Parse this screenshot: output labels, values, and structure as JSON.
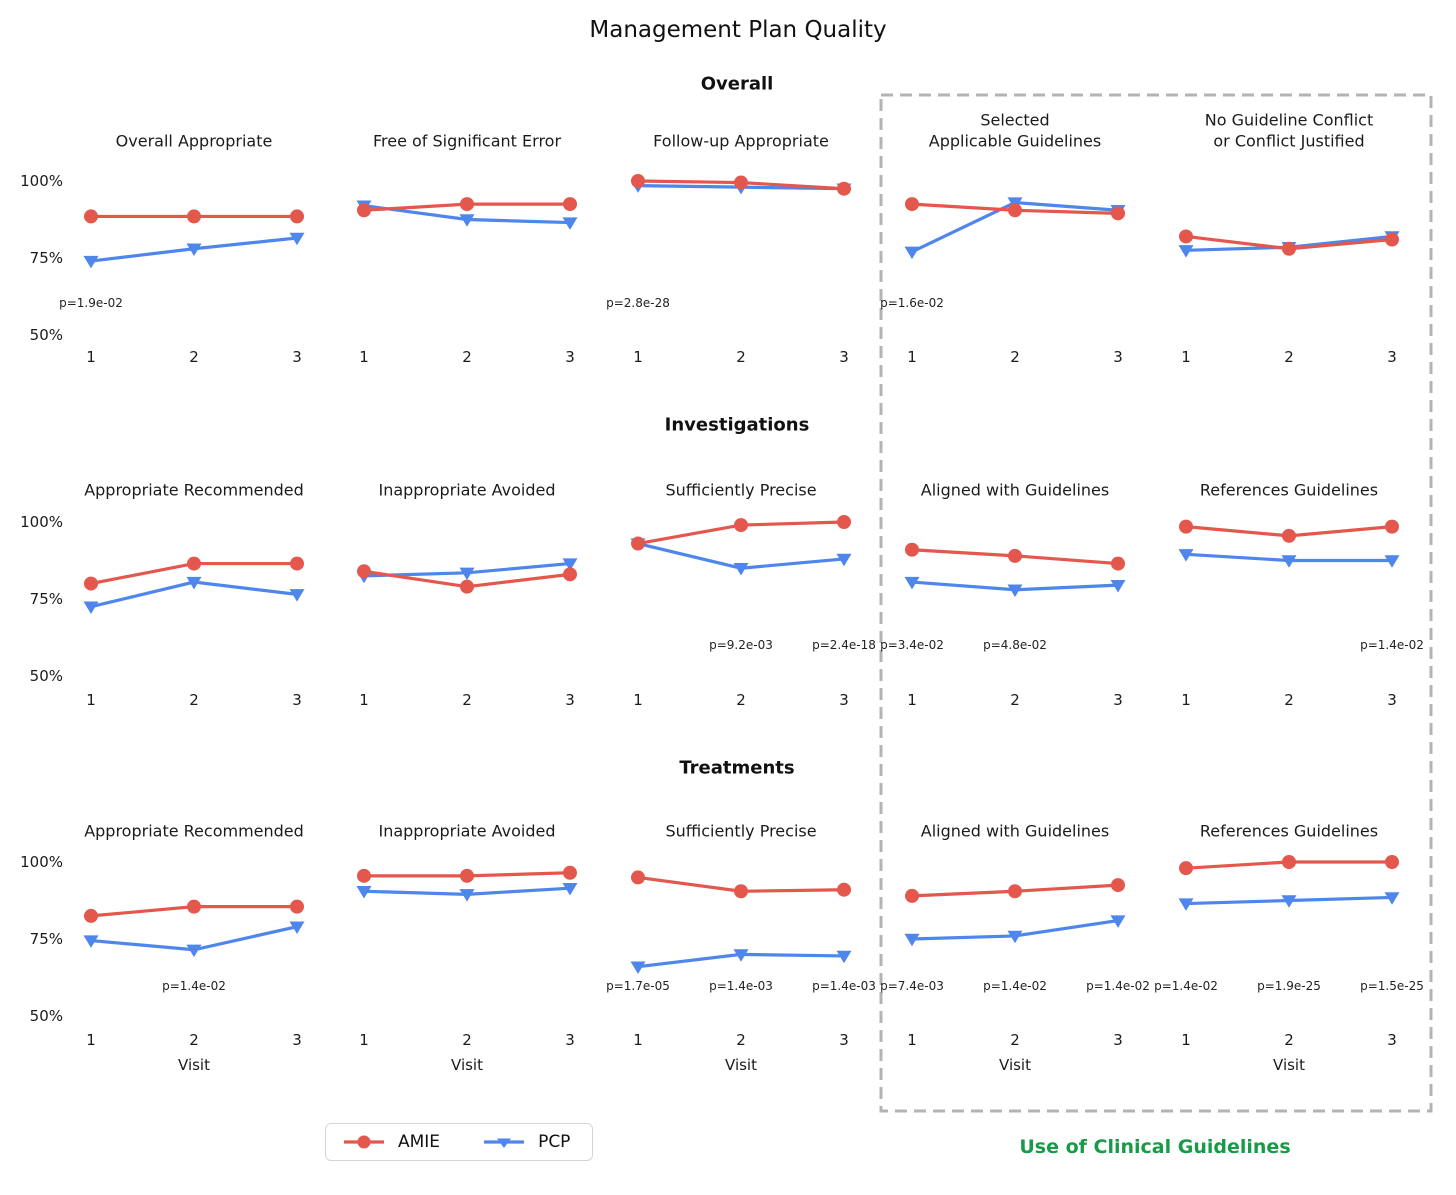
{
  "chart_data": {
    "type": "line",
    "title": "Management Plan Quality",
    "xlabel": "Visit",
    "x": [
      1,
      2,
      3
    ],
    "x_tick_labels": [
      "1",
      "2",
      "3"
    ],
    "y_ticks": [
      {
        "value": 100,
        "label": "100%"
      },
      {
        "value": 75,
        "label": "75%"
      },
      {
        "value": 50,
        "label": "50%"
      }
    ],
    "ylim": [
      50,
      100
    ],
    "grid": false,
    "legend_position": "bottom-left",
    "legend": [
      {
        "name": "AMIE",
        "marker": "circle",
        "color": "#e4574c"
      },
      {
        "name": "PCP",
        "marker": "triangle-down",
        "color": "#4e86ec"
      }
    ],
    "guidelines_box_label": "Use of Clinical Guidelines",
    "colors": {
      "amie": "#e4574c",
      "pcp": "#4e86ec",
      "guidelines_green": "#189b48",
      "dashed_box": "#b3b3b3"
    },
    "sections": [
      {
        "label": "Overall",
        "subplots": [
          {
            "title": "Overall Appropriate",
            "series": [
              {
                "name": "AMIE",
                "values": [
                  88.5,
                  88.5,
                  88.5
                ]
              },
              {
                "name": "PCP",
                "values": [
                  74,
                  78,
                  81.5
                ]
              }
            ],
            "pvalues": [
              {
                "visit": 1,
                "label": "p=1.9e-02"
              }
            ]
          },
          {
            "title": "Free of Significant Error",
            "series": [
              {
                "name": "AMIE",
                "values": [
                  90.5,
                  92.5,
                  92.5
                ]
              },
              {
                "name": "PCP",
                "values": [
                  92,
                  87.5,
                  86.5
                ]
              }
            ],
            "pvalues": []
          },
          {
            "title": "Follow-up Appropriate",
            "series": [
              {
                "name": "AMIE",
                "values": [
                  100,
                  99.5,
                  97.5
                ]
              },
              {
                "name": "PCP",
                "values": [
                  98.5,
                  98,
                  97.5
                ]
              }
            ],
            "pvalues": [
              {
                "visit": 1,
                "label": "p=2.8e-28"
              }
            ]
          },
          {
            "title": "Selected\nApplicable Guidelines",
            "in_guidelines_box": true,
            "series": [
              {
                "name": "AMIE",
                "values": [
                  92.5,
                  90.5,
                  89.5
                ]
              },
              {
                "name": "PCP",
                "values": [
                  77,
                  93,
                  90.5
                ]
              }
            ],
            "pvalues": [
              {
                "visit": 1,
                "label": "p=1.6e-02"
              }
            ]
          },
          {
            "title": "No Guideline Conflict\nor Conflict Justified",
            "in_guidelines_box": true,
            "series": [
              {
                "name": "AMIE",
                "values": [
                  82,
                  78,
                  81
                ]
              },
              {
                "name": "PCP",
                "values": [
                  77.5,
                  78.5,
                  82
                ]
              }
            ],
            "pvalues": []
          }
        ]
      },
      {
        "label": "Investigations",
        "subplots": [
          {
            "title": "Appropriate Recommended",
            "series": [
              {
                "name": "AMIE",
                "values": [
                  80,
                  86.5,
                  86.5
                ]
              },
              {
                "name": "PCP",
                "values": [
                  72.5,
                  80.5,
                  76.5
                ]
              }
            ],
            "pvalues": []
          },
          {
            "title": "Inappropriate Avoided",
            "series": [
              {
                "name": "AMIE",
                "values": [
                  84,
                  79,
                  83
                ]
              },
              {
                "name": "PCP",
                "values": [
                  82.5,
                  83.5,
                  86.5
                ]
              }
            ],
            "pvalues": []
          },
          {
            "title": "Sufficiently Precise",
            "series": [
              {
                "name": "AMIE",
                "values": [
                  93,
                  99,
                  100
                ]
              },
              {
                "name": "PCP",
                "values": [
                  93,
                  85,
                  88
                ]
              }
            ],
            "pvalues": [
              {
                "visit": 2,
                "label": "p=9.2e-03"
              },
              {
                "visit": 3,
                "label": "p=2.4e-18"
              }
            ]
          },
          {
            "title": "Aligned with Guidelines",
            "in_guidelines_box": true,
            "series": [
              {
                "name": "AMIE",
                "values": [
                  91,
                  89,
                  86.5
                ]
              },
              {
                "name": "PCP",
                "values": [
                  80.5,
                  78,
                  79.5
                ]
              }
            ],
            "pvalues": [
              {
                "visit": 1,
                "label": "p=3.4e-02"
              },
              {
                "visit": 2,
                "label": "p=4.8e-02"
              }
            ]
          },
          {
            "title": "References Guidelines",
            "in_guidelines_box": true,
            "series": [
              {
                "name": "AMIE",
                "values": [
                  98.5,
                  95.5,
                  98.5
                ]
              },
              {
                "name": "PCP",
                "values": [
                  89.5,
                  87.5,
                  87.5
                ]
              }
            ],
            "pvalues": [
              {
                "visit": 3,
                "label": "p=1.4e-02"
              }
            ]
          }
        ]
      },
      {
        "label": "Treatments",
        "subplots": [
          {
            "title": "Appropriate Recommended",
            "series": [
              {
                "name": "AMIE",
                "values": [
                  82.5,
                  85.5,
                  85.5
                ]
              },
              {
                "name": "PCP",
                "values": [
                  74.5,
                  71.5,
                  79
                ]
              }
            ],
            "pvalues": [
              {
                "visit": 2,
                "label": "p=1.4e-02"
              }
            ]
          },
          {
            "title": "Inappropriate Avoided",
            "series": [
              {
                "name": "AMIE",
                "values": [
                  95.5,
                  95.5,
                  96.5
                ]
              },
              {
                "name": "PCP",
                "values": [
                  90.5,
                  89.5,
                  91.5
                ]
              }
            ],
            "pvalues": []
          },
          {
            "title": "Sufficiently Precise",
            "series": [
              {
                "name": "AMIE",
                "values": [
                  95,
                  90.5,
                  91
                ]
              },
              {
                "name": "PCP",
                "values": [
                  66,
                  70,
                  69.5
                ]
              }
            ],
            "pvalues": [
              {
                "visit": 1,
                "label": "p=1.7e-05"
              },
              {
                "visit": 2,
                "label": "p=1.4e-03"
              },
              {
                "visit": 3,
                "label": "p=1.4e-03"
              }
            ]
          },
          {
            "title": "Aligned with Guidelines",
            "in_guidelines_box": true,
            "series": [
              {
                "name": "AMIE",
                "values": [
                  89,
                  90.5,
                  92.5
                ]
              },
              {
                "name": "PCP",
                "values": [
                  75,
                  76,
                  81
                ]
              }
            ],
            "pvalues": [
              {
                "visit": 1,
                "label": "p=7.4e-03"
              },
              {
                "visit": 2,
                "label": "p=1.4e-02"
              },
              {
                "visit": 3,
                "label": "p=1.4e-02"
              }
            ]
          },
          {
            "title": "References Guidelines",
            "in_guidelines_box": true,
            "series": [
              {
                "name": "AMIE",
                "values": [
                  98,
                  100,
                  100
                ]
              },
              {
                "name": "PCP",
                "values": [
                  86.5,
                  87.5,
                  88.5
                ]
              }
            ],
            "pvalues": [
              {
                "visit": 1,
                "label": "p=1.4e-02"
              },
              {
                "visit": 2,
                "label": "p=1.9e-25"
              },
              {
                "visit": 3,
                "label": "p=1.5e-25"
              }
            ]
          }
        ]
      }
    ]
  }
}
